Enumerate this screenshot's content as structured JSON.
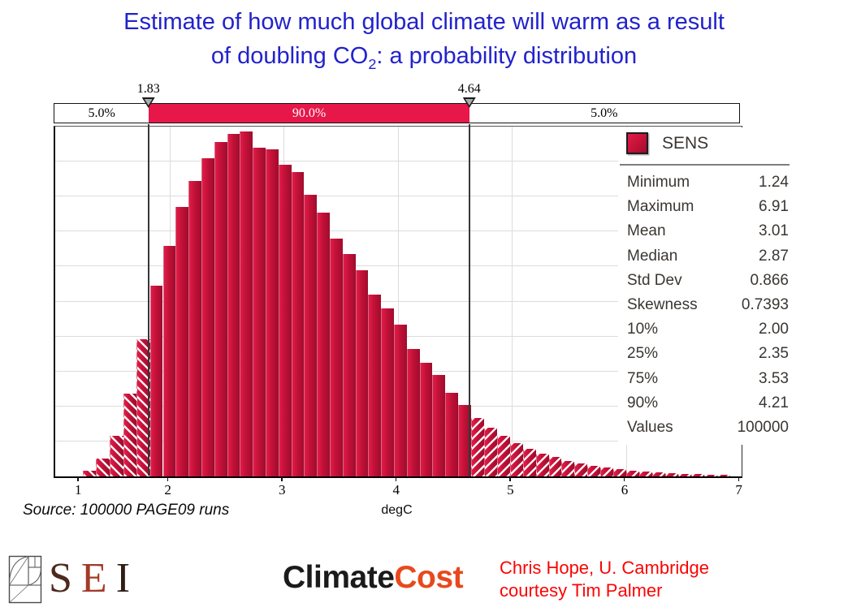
{
  "colors": {
    "title_blue": "#2222CC",
    "band_red": "#E7174A",
    "bar_light": "#E01C49",
    "bar_mid": "#C41138",
    "bar_dark": "#9E0C2D",
    "credit_red": "#FB0404",
    "cc_orange": "#E8491C",
    "sei_s": "#4E291E",
    "sei_e": "#A23B28",
    "sei_i": "#301E16"
  },
  "title": {
    "line1": "Estimate of how much global climate will warm as a result",
    "line2_pre": "of doubling CO",
    "line2_sub": "2",
    "line2_post": ": a probability distribution"
  },
  "source_note": "Source: 100000 PAGE09 runs",
  "chart_data": {
    "type": "bar",
    "title": "Estimate of how much global climate will warm as a result of doubling CO2: a probability distribution",
    "xlabel": "degC",
    "ylabel": "",
    "axis": {
      "vmin": 1.0,
      "vmax": 7.01
    },
    "grid": {
      "h_divisions": 10,
      "v_values": [
        2,
        3,
        4,
        5,
        6
      ]
    },
    "x_ticks": [
      {
        "label": "1",
        "v": 1.215
      },
      {
        "label": "2",
        "v": 2
      },
      {
        "label": "3",
        "v": 3
      },
      {
        "label": "4",
        "v": 4
      },
      {
        "label": "5",
        "v": 5
      },
      {
        "label": "6",
        "v": 6
      },
      {
        "label": "7",
        "v": 7
      }
    ],
    "markers": [
      {
        "label": "1.83",
        "value": 1.83
      },
      {
        "label": "4.64",
        "value": 4.64
      }
    ],
    "band": {
      "segments": [
        {
          "label": "5.0%",
          "style": "white"
        },
        {
          "label": "90.0%",
          "style": "red"
        },
        {
          "label": "5.0%",
          "style": "white"
        }
      ]
    },
    "bars": {
      "groups": [
        {
          "style": "hatchL",
          "v0": 1.24,
          "v1": 1.83,
          "heights_pct": [
            1.6,
            5.1,
            11.6,
            23.7,
            39.1
          ]
        },
        {
          "style": "solid",
          "v0": 1.83,
          "v1": 4.64,
          "heights_pct": [
            54.5,
            66,
            77,
            84.5,
            91,
            95.5,
            98,
            98.5,
            94,
            93.5,
            89,
            87,
            80.5,
            75.5,
            68,
            63.5,
            59,
            52,
            48,
            43.5,
            36.5,
            32.5,
            29,
            24,
            20.5
          ]
        },
        {
          "style": "hatchR",
          "v0": 4.64,
          "v1": 6.91,
          "heights_pct": [
            16.8,
            14,
            11.5,
            9.5,
            8,
            6.6,
            5.5,
            4.5,
            3.7,
            3.0,
            2.5,
            2.0,
            1.6,
            1.3,
            1.1,
            0.9,
            0.75,
            0.6,
            0.5,
            0.4
          ]
        }
      ]
    },
    "legend": {
      "series_label": "SENS",
      "stats": [
        {
          "label": "Minimum",
          "value": "1.24"
        },
        {
          "label": "Maximum",
          "value": "6.91"
        },
        {
          "label": "Mean",
          "value": "3.01"
        },
        {
          "label": "Median",
          "value": "2.87"
        },
        {
          "label": "Std Dev",
          "value": "0.866"
        },
        {
          "label": "Skewness",
          "value": "0.7393"
        },
        {
          "label": "10%",
          "value": "2.00"
        },
        {
          "label": "25%",
          "value": "2.35"
        },
        {
          "label": "75%",
          "value": "3.53"
        },
        {
          "label": "90%",
          "value": "4.21"
        },
        {
          "label": "Values",
          "value": "100000"
        }
      ]
    }
  },
  "footer": {
    "sei": {
      "s": "S",
      "e": "E",
      "i": "I"
    },
    "climatecost": {
      "part1": "Climate",
      "part2": "Cost"
    },
    "credit_line1": "Chris Hope, U. Cambridge",
    "credit_line2": "courtesy Tim Palmer"
  }
}
